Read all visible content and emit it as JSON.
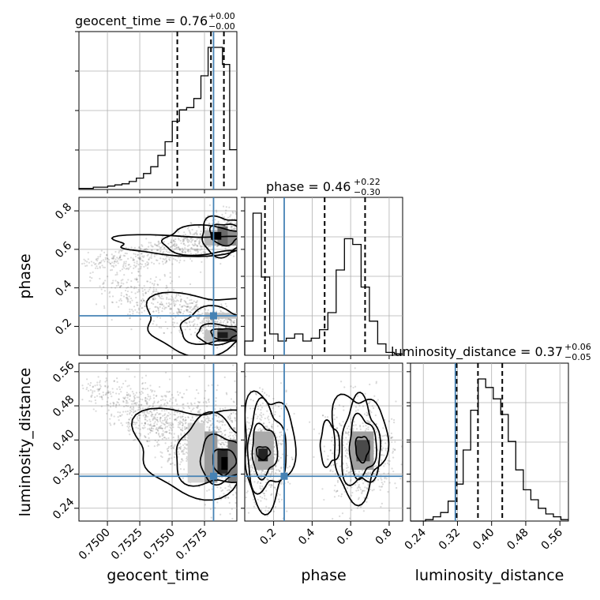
{
  "chart_data": {
    "type": "corner",
    "parameters": [
      {
        "name": "geocent_time",
        "range": [
          0.7478,
          0.76
        ],
        "truth": 0.7582,
        "ticks": [
          0.75,
          0.7525,
          0.755,
          0.7575
        ],
        "tick_labels": [
          "0.7500",
          "0.7525",
          "0.7550",
          "0.7575"
        ],
        "title_main": "geocent_time = 0.76",
        "title_plus": "+0.00",
        "title_minus": "−0.00",
        "quantiles": [
          0.7554,
          0.758,
          0.759
        ]
      },
      {
        "name": "phase",
        "range": [
          0.05,
          0.87
        ],
        "truth": 0.255,
        "ticks": [
          0.2,
          0.4,
          0.6,
          0.8
        ],
        "tick_labels": [
          "0.2",
          "0.4",
          "0.6",
          "0.8"
        ],
        "title_main": "phase = 0.46",
        "title_plus": "+0.22",
        "title_minus": "−0.30",
        "quantiles": [
          0.155,
          0.465,
          0.675
        ]
      },
      {
        "name": "luminosity_distance",
        "range": [
          0.21,
          0.58
        ],
        "truth": 0.315,
        "ticks": [
          0.24,
          0.32,
          0.4,
          0.48,
          0.56
        ],
        "tick_labels": [
          "0.24",
          "0.32",
          "0.40",
          "0.48",
          "0.56"
        ],
        "title_main": "luminosity_distance = 0.37",
        "title_plus": "+0.06",
        "title_minus": "−0.05",
        "quantiles": [
          0.318,
          0.368,
          0.425
        ]
      }
    ],
    "histograms": {
      "geocent_time": [
        1,
        1,
        2,
        2,
        3,
        4,
        5,
        7,
        10,
        14,
        20,
        30,
        42,
        60,
        70,
        72,
        80,
        100,
        125,
        125,
        110,
        35
      ],
      "phase": [
        10,
        100,
        55,
        15,
        10,
        12,
        15,
        10,
        12,
        18,
        30,
        60,
        82,
        78,
        48,
        24,
        8,
        2,
        1
      ],
      "luminosity_distance": [
        0,
        0,
        1,
        3,
        6,
        14,
        26,
        50,
        78,
        100,
        94,
        86,
        75,
        56,
        36,
        22,
        15,
        9,
        5,
        3,
        1
      ]
    },
    "grid": true
  },
  "colors": {
    "truth": "#4682b4",
    "hist": "#000000",
    "grid": "#b0b0b0",
    "scatter": "#555555"
  }
}
